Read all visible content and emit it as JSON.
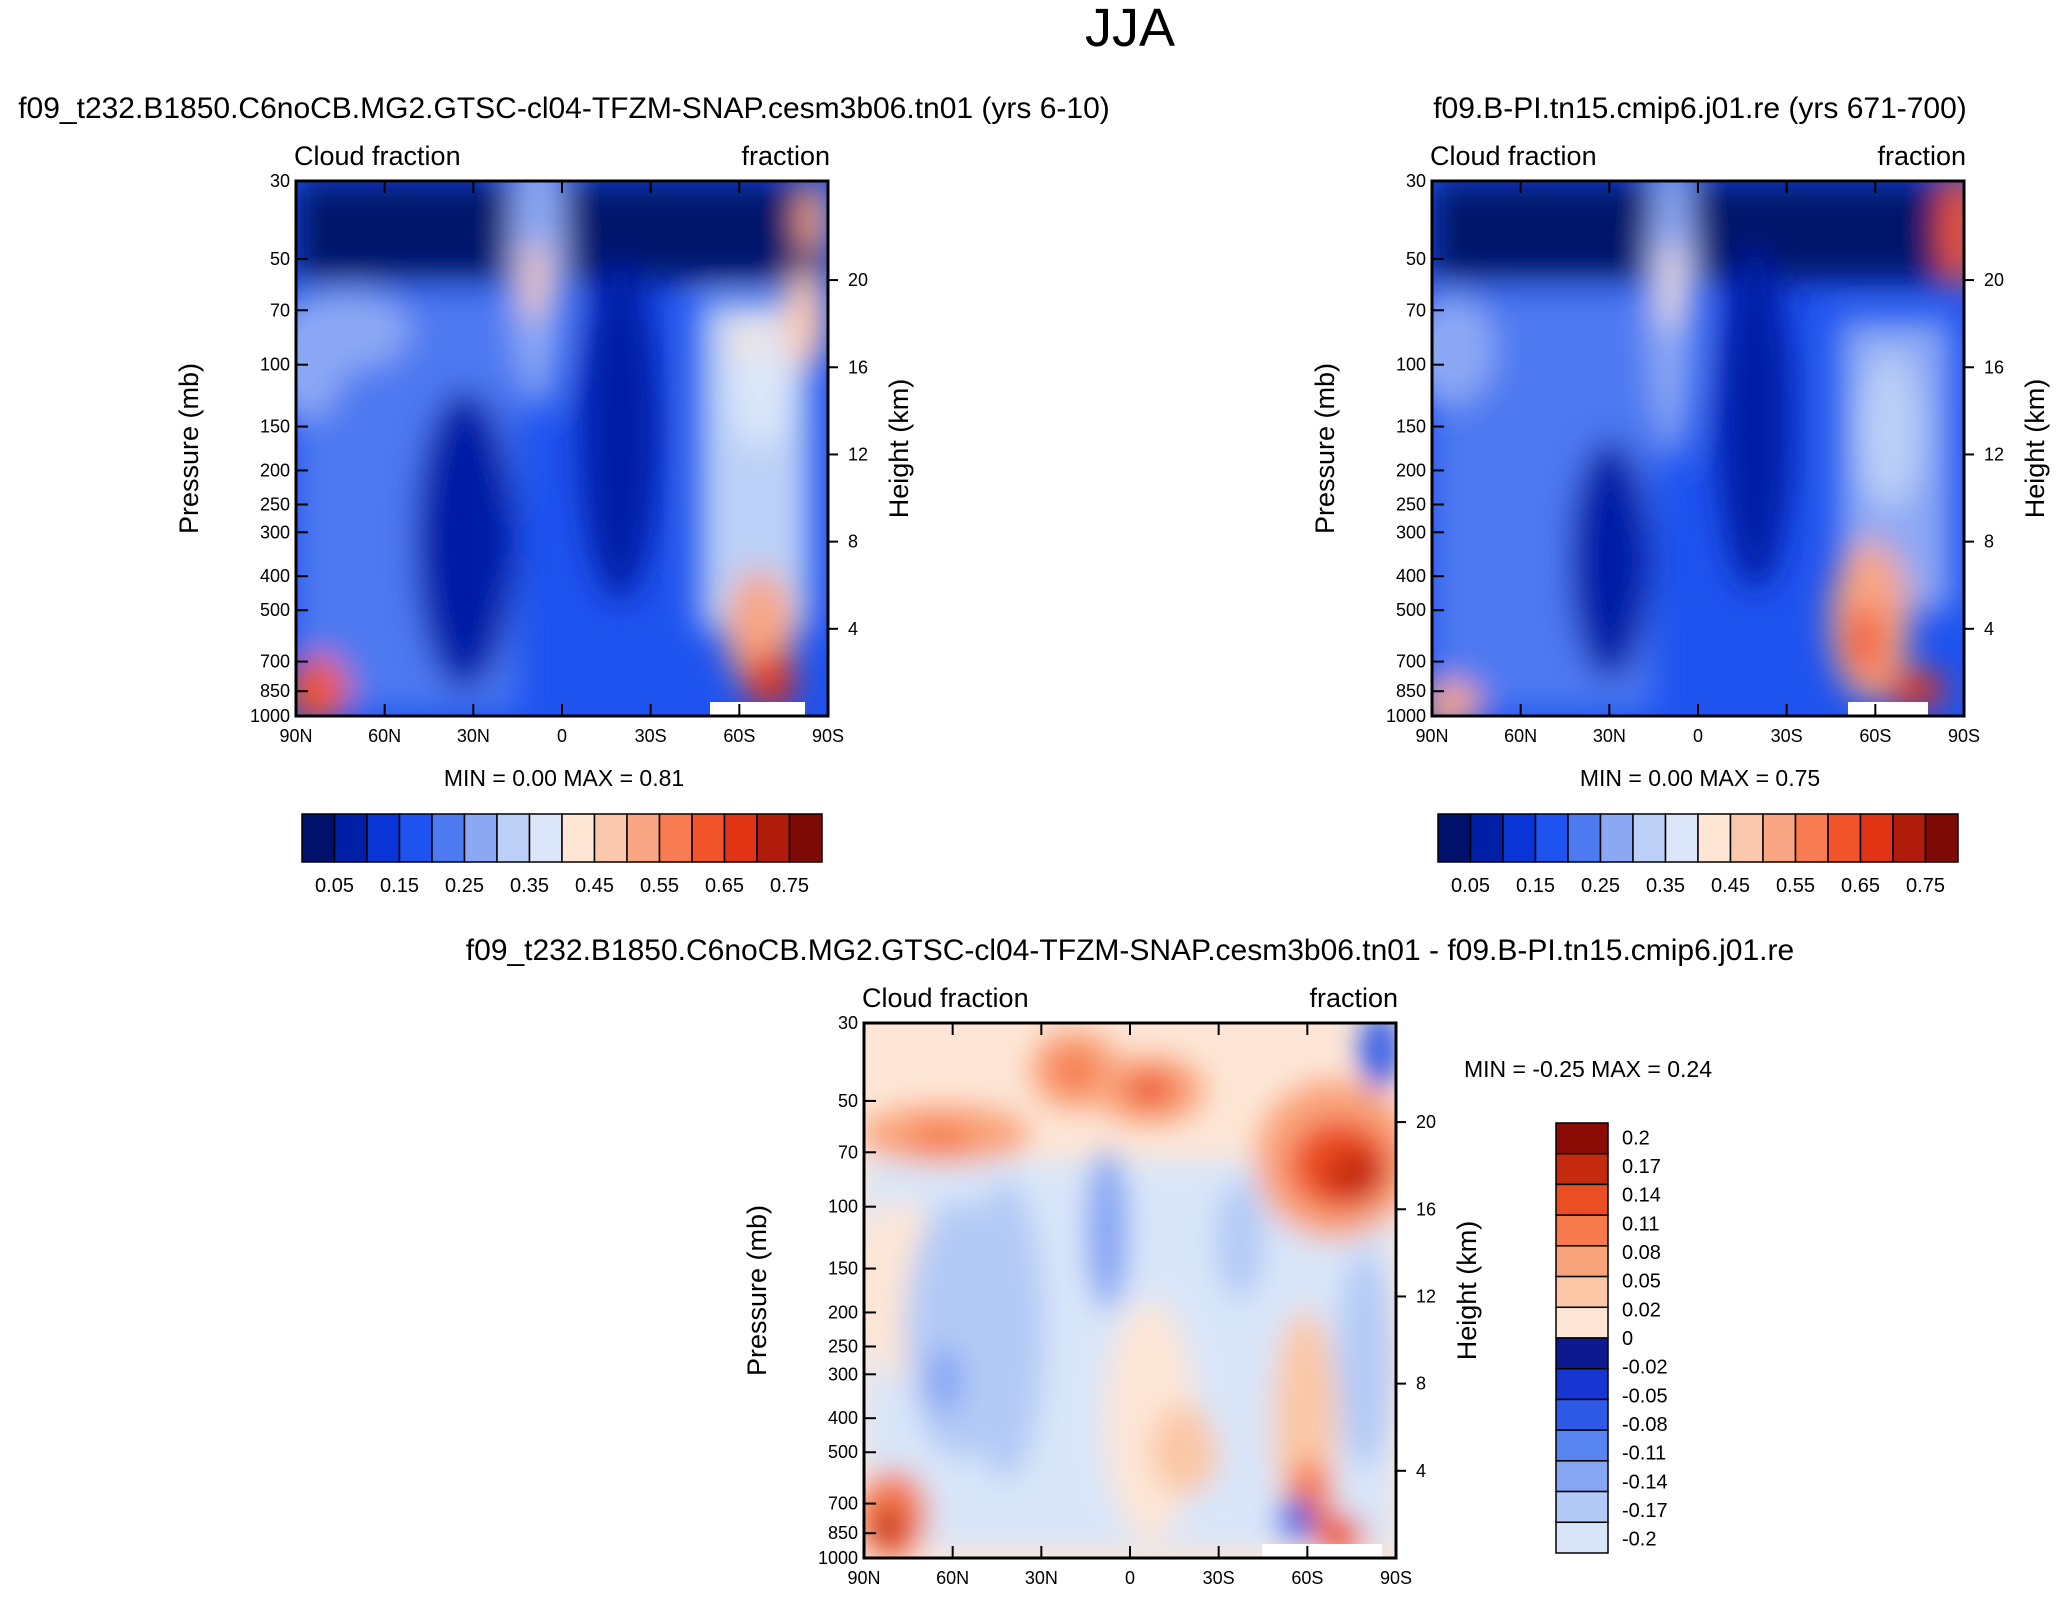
{
  "figure": {
    "title": "JJA"
  },
  "colors": {
    "blue_scale": [
      "#00126b",
      "#001ea6",
      "#0a35d6",
      "#1e53ef",
      "#4d79f1",
      "#8ca8f4",
      "#bcd0f7",
      "#dbe7f9"
    ],
    "red_scale": [
      "#fde6d4",
      "#fbc8ae",
      "#f8a684",
      "#f77c52",
      "#f2552a",
      "#e03414",
      "#b01c0c",
      "#7d0a05"
    ],
    "diff_neg": [
      "#0c198f",
      "#1635d1",
      "#2f5ae8",
      "#5784f0",
      "#86a6f3",
      "#b3caf6",
      "#d9e6f9"
    ],
    "diff_pos": [
      "#fde6d6",
      "#fbc7a6",
      "#f9a37a",
      "#f67a4c",
      "#ec4e24",
      "#c42a0d",
      "#8b0c05"
    ]
  },
  "chart_data": [
    {
      "type": "heatmap",
      "title": "f09_t232.B1850.C6noCB.MG2.GTSC-cl04-TFZM-SNAP.cesm3b06.tn01 (yrs 6-10)",
      "left_label": "Cloud fraction",
      "right_label": "fraction",
      "xlabel": "",
      "ylabel": "Pressure (mb)",
      "y2label": "Height (km)",
      "x_ticks": [
        "90N",
        "60N",
        "30N",
        "0",
        "30S",
        "60S",
        "90S"
      ],
      "y_ticks": [
        30,
        50,
        70,
        100,
        150,
        200,
        250,
        300,
        400,
        500,
        700,
        850,
        1000
      ],
      "y_tick_labels": [
        "30",
        "50",
        "70",
        "100",
        "150",
        "200",
        "250",
        "300",
        "400",
        "500",
        "700",
        "850",
        "1000"
      ],
      "y2_ticks": [
        20,
        16,
        12,
        8,
        4
      ],
      "y2_tick_labels": [
        "20",
        "16",
        "12",
        "8",
        "4"
      ],
      "ylim": [
        30,
        1000
      ],
      "xlim": [
        90,
        -90
      ],
      "stats_text": "MIN =   0.00   MAX =    0.81",
      "min": 0.0,
      "max": 0.81,
      "colorbar": {
        "levels": [
          0.05,
          0.1,
          0.15,
          0.2,
          0.25,
          0.3,
          0.35,
          0.4,
          0.45,
          0.5,
          0.55,
          0.6,
          0.65,
          0.7,
          0.75
        ],
        "labels": [
          "0.05",
          "0.15",
          "0.25",
          "0.35",
          "0.45",
          "0.55",
          "0.65",
          "0.75"
        ]
      }
    },
    {
      "type": "heatmap",
      "title": "f09.B-PI.tn15.cmip6.j01.re (yrs 671-700)",
      "left_label": "Cloud fraction",
      "right_label": "fraction",
      "xlabel": "",
      "ylabel": "Pressure (mb)",
      "y2label": "Height (km)",
      "x_ticks": [
        "90N",
        "60N",
        "30N",
        "0",
        "30S",
        "60S",
        "90S"
      ],
      "y_ticks": [
        30,
        50,
        70,
        100,
        150,
        200,
        250,
        300,
        400,
        500,
        700,
        850,
        1000
      ],
      "y_tick_labels": [
        "30",
        "50",
        "70",
        "100",
        "150",
        "200",
        "250",
        "300",
        "400",
        "500",
        "700",
        "850",
        "1000"
      ],
      "y2_ticks": [
        20,
        16,
        12,
        8,
        4
      ],
      "y2_tick_labels": [
        "20",
        "16",
        "12",
        "8",
        "4"
      ],
      "ylim": [
        30,
        1000
      ],
      "xlim": [
        90,
        -90
      ],
      "stats_text": "MIN =   0.00   MAX =    0.75",
      "min": 0.0,
      "max": 0.75,
      "colorbar": {
        "levels": [
          0.05,
          0.1,
          0.15,
          0.2,
          0.25,
          0.3,
          0.35,
          0.4,
          0.45,
          0.5,
          0.55,
          0.6,
          0.65,
          0.7,
          0.75
        ],
        "labels": [
          "0.05",
          "0.15",
          "0.25",
          "0.35",
          "0.45",
          "0.55",
          "0.65",
          "0.75"
        ]
      }
    },
    {
      "type": "heatmap",
      "title": "f09_t232.B1850.C6noCB.MG2.GTSC-cl04-TFZM-SNAP.cesm3b06.tn01 - f09.B-PI.tn15.cmip6.j01.re",
      "left_label": "Cloud fraction",
      "right_label": "fraction",
      "xlabel": "",
      "ylabel": "Pressure (mb)",
      "y2label": "Height (km)",
      "x_ticks": [
        "90N",
        "60N",
        "30N",
        "0",
        "30S",
        "60S",
        "90S"
      ],
      "y_ticks": [
        30,
        50,
        70,
        100,
        150,
        200,
        250,
        300,
        400,
        500,
        700,
        850,
        1000
      ],
      "y_tick_labels": [
        "30",
        "50",
        "70",
        "100",
        "150",
        "200",
        "250",
        "300",
        "400",
        "500",
        "700",
        "850",
        "1000"
      ],
      "y2_ticks": [
        20,
        16,
        12,
        8,
        4
      ],
      "y2_tick_labels": [
        "20",
        "16",
        "12",
        "8",
        "4"
      ],
      "ylim": [
        30,
        1000
      ],
      "xlim": [
        90,
        -90
      ],
      "stats_text": "MIN =  -0.25   MAX =    0.24",
      "min": -0.25,
      "max": 0.24,
      "colorbar": {
        "levels": [
          0.2,
          0.17,
          0.14,
          0.11,
          0.08,
          0.05,
          0.02,
          0,
          -0.02,
          -0.05,
          -0.08,
          -0.11,
          -0.14,
          -0.17,
          -0.2
        ],
        "labels": [
          "0.2",
          "0.17",
          "0.14",
          "0.11",
          "0.08",
          "0.05",
          "0.02",
          "0",
          "-0.02",
          "-0.05",
          "-0.08",
          "-0.11",
          "-0.14",
          "-0.17",
          "-0.2"
        ]
      }
    }
  ]
}
